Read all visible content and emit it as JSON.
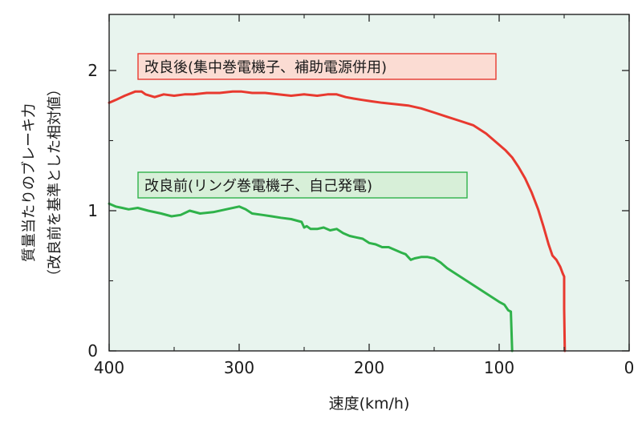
{
  "chart_data": {
    "type": "line",
    "xlabel": "速度(km/h)",
    "ylabel_line1": "質量当たりのブレーキ力",
    "ylabel_line2": "（改良前を基準とした相対値）",
    "xlim": [
      400,
      0
    ],
    "ylim": [
      0,
      2.4
    ],
    "x_ticks": [
      400,
      300,
      200,
      100,
      0
    ],
    "x_tick_labels": [
      "400",
      "300",
      "200",
      "100",
      "0"
    ],
    "y_ticks": [
      0,
      1,
      2
    ],
    "y_tick_labels": [
      "0",
      "1",
      "2"
    ],
    "x_minor_step": 50,
    "y_minor_step": 0.5,
    "background": "#e8f4ee",
    "series": [
      {
        "name": "改良後(集中巻電機子、補助電源併用)",
        "color": "#e8392f",
        "label_bg": "#fbdcd3",
        "x": [
          400,
          395,
          388,
          380,
          375,
          372,
          365,
          358,
          350,
          342,
          335,
          325,
          315,
          305,
          298,
          290,
          280,
          270,
          260,
          250,
          240,
          232,
          225,
          218,
          212,
          205,
          198,
          190,
          180,
          170,
          160,
          150,
          140,
          130,
          120,
          115,
          110,
          105,
          100,
          95,
          90,
          85,
          80,
          75,
          70,
          66,
          62,
          59,
          56,
          53,
          51,
          50,
          50,
          49.5
        ],
        "y": [
          1.77,
          1.79,
          1.82,
          1.85,
          1.85,
          1.83,
          1.81,
          1.83,
          1.82,
          1.83,
          1.83,
          1.84,
          1.84,
          1.85,
          1.85,
          1.84,
          1.84,
          1.83,
          1.82,
          1.83,
          1.82,
          1.83,
          1.83,
          1.81,
          1.8,
          1.79,
          1.78,
          1.77,
          1.76,
          1.75,
          1.73,
          1.7,
          1.67,
          1.64,
          1.61,
          1.58,
          1.55,
          1.51,
          1.47,
          1.43,
          1.38,
          1.31,
          1.23,
          1.13,
          1.01,
          0.89,
          0.76,
          0.68,
          0.65,
          0.6,
          0.55,
          0.53,
          0.3,
          0.0
        ]
      },
      {
        "name": "改良前(リング巻電機子、自己発電)",
        "color": "#2fb24a",
        "label_bg": "#d7efd8",
        "x": [
          400,
          395,
          390,
          385,
          378,
          370,
          360,
          352,
          345,
          338,
          330,
          320,
          310,
          300,
          295,
          290,
          282,
          275,
          268,
          260,
          252,
          250,
          248,
          245,
          240,
          235,
          230,
          225,
          220,
          215,
          210,
          205,
          200,
          195,
          190,
          185,
          180,
          175,
          172,
          168,
          165,
          160,
          155,
          150,
          145,
          140,
          135,
          130,
          125,
          120,
          115,
          110,
          105,
          100,
          96,
          93,
          91,
          90
        ],
        "y": [
          1.05,
          1.03,
          1.02,
          1.01,
          1.02,
          1.0,
          0.98,
          0.96,
          0.97,
          1.0,
          0.98,
          0.99,
          1.01,
          1.03,
          1.01,
          0.98,
          0.97,
          0.96,
          0.95,
          0.94,
          0.92,
          0.88,
          0.89,
          0.87,
          0.87,
          0.88,
          0.86,
          0.87,
          0.84,
          0.82,
          0.81,
          0.8,
          0.77,
          0.76,
          0.74,
          0.74,
          0.72,
          0.7,
          0.69,
          0.65,
          0.66,
          0.67,
          0.67,
          0.66,
          0.63,
          0.59,
          0.56,
          0.53,
          0.5,
          0.47,
          0.44,
          0.41,
          0.38,
          0.35,
          0.33,
          0.29,
          0.28,
          0.0
        ]
      }
    ]
  }
}
